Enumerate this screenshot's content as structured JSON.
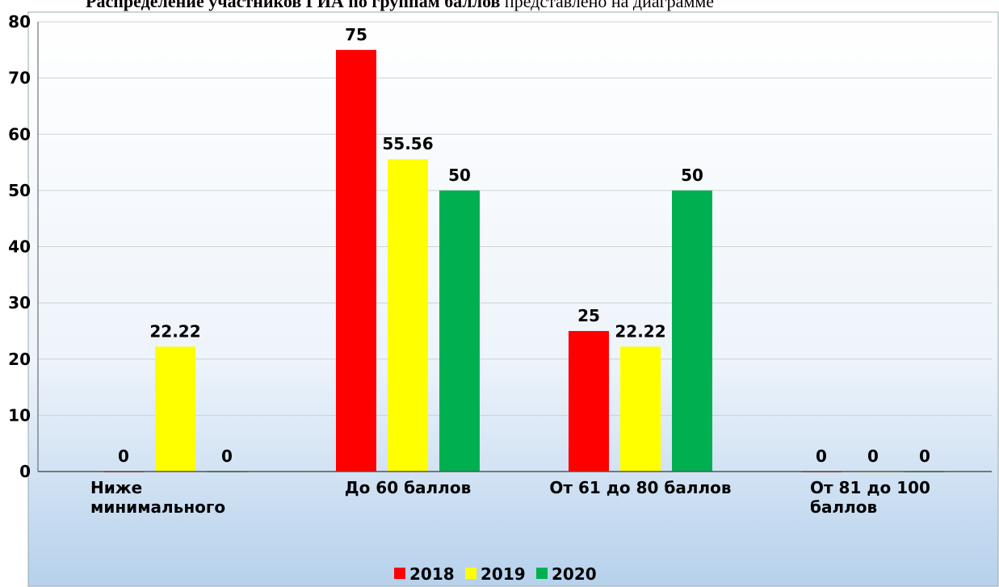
{
  "header": {
    "bold": "Распределение участников ГИА по группам баллов",
    "normal": "представлено на диаграмме"
  },
  "chart_data": {
    "type": "bar",
    "categories": [
      "Ниже минимального",
      "До 60 баллов",
      "От 61 до 80 баллов",
      "От 81 до 100 баллов"
    ],
    "series": [
      {
        "name": "2018",
        "color": "#ff0000",
        "values": [
          0,
          75,
          25,
          0
        ]
      },
      {
        "name": "2019",
        "color": "#ffff00",
        "values": [
          22.22,
          55.56,
          22.22,
          0
        ]
      },
      {
        "name": "2020",
        "color": "#00b050",
        "values": [
          0,
          50,
          50,
          0
        ]
      }
    ],
    "ylim": [
      0,
      80
    ],
    "yticks": [
      0,
      10,
      20,
      30,
      40,
      50,
      60,
      70,
      80
    ],
    "grid": true,
    "legend": "bottom"
  }
}
